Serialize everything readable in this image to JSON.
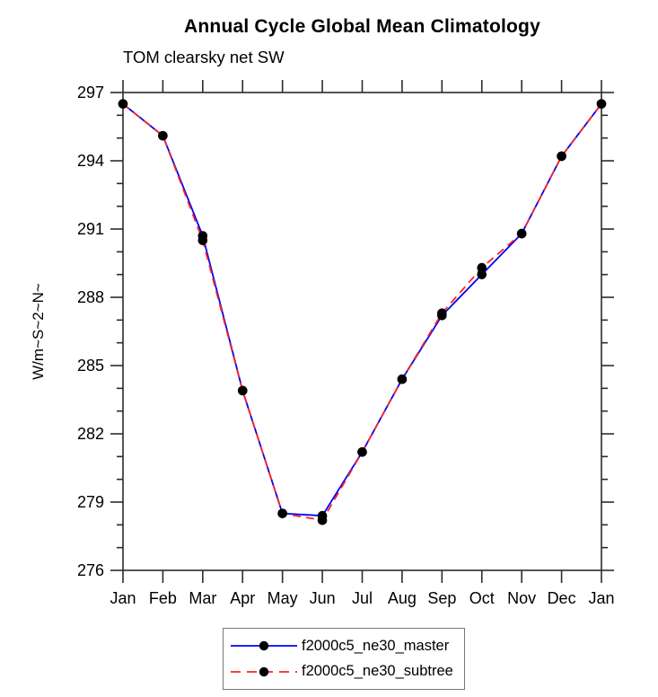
{
  "chart_data": {
    "type": "line",
    "title": "Annual Cycle Global Mean Climatology",
    "subtitle": "TOM clearsky net SW",
    "xlabel": "",
    "ylabel": "W/m~S~2~N~",
    "categories": [
      "Jan",
      "Feb",
      "Mar",
      "Apr",
      "May",
      "Jun",
      "Jul",
      "Aug",
      "Sep",
      "Oct",
      "Nov",
      "Dec",
      "Jan"
    ],
    "series": [
      {
        "name": "f2000c5_ne30_master",
        "color": "#0000ff",
        "style": "solid",
        "marker": "black-dot",
        "values": [
          296.5,
          295.1,
          290.7,
          283.9,
          278.5,
          278.4,
          281.2,
          284.4,
          287.2,
          289.0,
          290.8,
          294.2,
          296.5
        ]
      },
      {
        "name": "f2000c5_ne30_subtree",
        "color": "#ff2222",
        "style": "dashed",
        "marker": "black-dot",
        "values": [
          296.5,
          295.1,
          290.5,
          283.9,
          278.5,
          278.2,
          281.2,
          284.4,
          287.3,
          289.3,
          290.8,
          294.2,
          296.5
        ]
      }
    ],
    "ylim": [
      276,
      297
    ],
    "yticks": [
      276,
      279,
      282,
      285,
      288,
      291,
      294,
      297
    ],
    "minor_tick_step": 1,
    "grid": false,
    "legend_position": "bottom-center"
  }
}
